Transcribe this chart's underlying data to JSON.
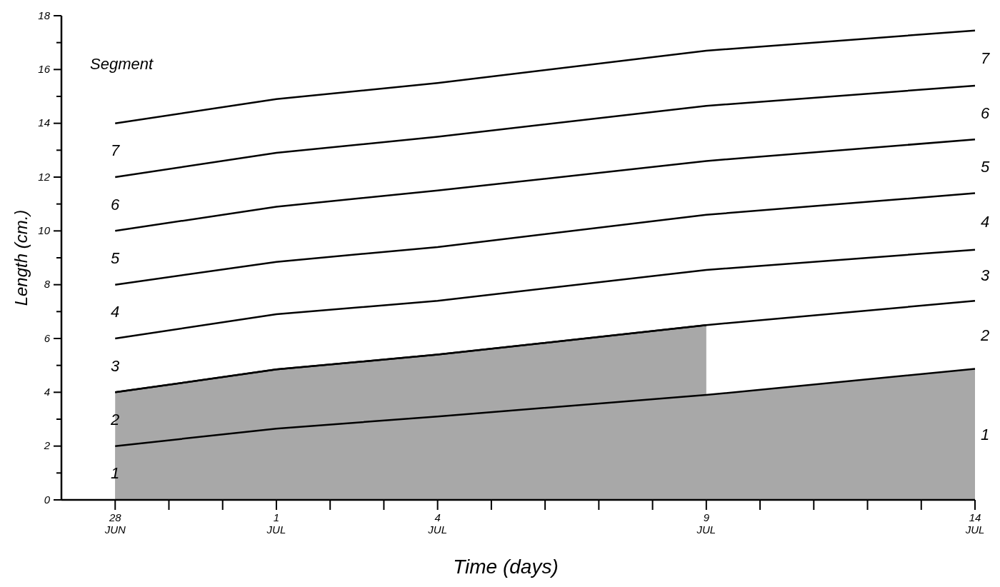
{
  "chart_data": {
    "type": "line",
    "xlabel": "Time (days)",
    "ylabel": "Length (cm.)",
    "xlim": [
      "--06-27",
      "--07-14"
    ],
    "ylim": [
      0,
      18
    ],
    "xticks": [
      {
        "value": "--06-28",
        "label": "28 JUN"
      },
      {
        "value": "--06-29",
        "label": null
      },
      {
        "value": "--06-30",
        "label": null
      },
      {
        "value": "--07-01",
        "label": "1 JUL"
      },
      {
        "value": "--07-02",
        "label": null
      },
      {
        "value": "--07-03",
        "label": null
      },
      {
        "value": "--07-04",
        "label": "4 JUL"
      },
      {
        "value": "--07-05",
        "label": null
      },
      {
        "value": "--07-06",
        "label": null
      },
      {
        "value": "--07-07",
        "label": null
      },
      {
        "value": "--07-08",
        "label": null
      },
      {
        "value": "--07-09",
        "label": "9 JUL"
      },
      {
        "value": "--07-10",
        "label": null
      },
      {
        "value": "--07-11",
        "label": null
      },
      {
        "value": "--07-12",
        "label": null
      },
      {
        "value": "--07-13",
        "label": null
      },
      {
        "value": "--07-14",
        "label": "14 JUL"
      }
    ],
    "yticks": [
      0,
      {
        "value": 1,
        "label": null
      },
      2,
      {
        "value": 3,
        "label": null
      },
      4,
      {
        "value": 5,
        "label": null
      },
      6,
      {
        "value": 7,
        "label": null
      },
      8,
      {
        "value": 9,
        "label": null
      },
      10,
      {
        "value": 11,
        "label": null
      },
      12,
      {
        "value": 13,
        "label": null
      },
      14,
      {
        "value": 15,
        "label": null
      },
      16,
      {
        "value": 17,
        "label": null
      },
      18
    ],
    "grid": false,
    "marker": "none",
    "line_style": "solid",
    "x": [
      "--06-28",
      "--07-01",
      "--07-04",
      "--07-09",
      "--07-14"
    ],
    "series": [
      {
        "type": "area",
        "color": "#a8a8a8",
        "values": [
          2.0,
          2.65,
          3.1,
          3.9,
          4.87
        ]
      },
      {
        "type": "area",
        "color": "#a8a8a8",
        "x": [
          "--06-28",
          "--07-01",
          "--07-04",
          "--07-09"
        ],
        "values": [
          4.0,
          4.85,
          5.4,
          6.5
        ]
      },
      {
        "color": "#000000",
        "values": [
          4.0,
          4.85,
          5.4,
          6.5,
          7.4
        ]
      },
      {
        "color": "#000000",
        "values": [
          6.0,
          6.9,
          7.4,
          8.55,
          9.3
        ]
      },
      {
        "color": "#000000",
        "values": [
          8.0,
          8.85,
          9.4,
          10.6,
          11.4
        ]
      },
      {
        "color": "#000000",
        "values": [
          10.0,
          10.9,
          11.5,
          12.6,
          13.4
        ]
      },
      {
        "color": "#000000",
        "values": [
          12.0,
          12.9,
          13.5,
          14.65,
          15.4
        ]
      },
      {
        "color": "#000000",
        "values": [
          14.0,
          14.9,
          15.5,
          16.7,
          17.45
        ]
      }
    ],
    "annotations": [
      "Segment",
      "1",
      "2",
      "3",
      "4",
      "5",
      "6",
      "7",
      "1",
      "2",
      "3",
      "4",
      "5",
      "6",
      "7"
    ]
  }
}
